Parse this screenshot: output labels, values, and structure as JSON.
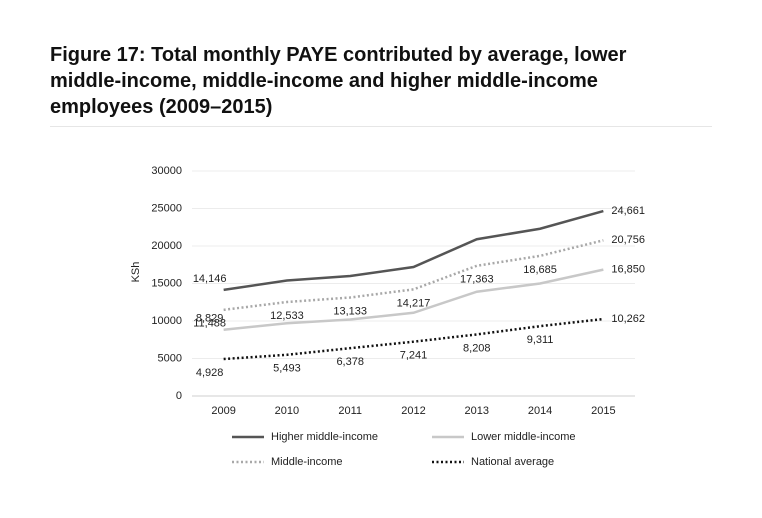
{
  "chart_data": {
    "type": "line",
    "title": "Figure 17: Total monthly PAYE contributed by average, lower middle-income, middle-income and higher middle-income employees (2009–2015)",
    "y_label": "KSh",
    "categories": [
      "2009",
      "2010",
      "2011",
      "2012",
      "2013",
      "2014",
      "2015"
    ],
    "ylim": [
      0,
      30000
    ],
    "yticks": [
      0,
      5000,
      10000,
      15000,
      20000,
      25000,
      30000
    ],
    "grid": true,
    "series": [
      {
        "name": "Higher middle-income",
        "color": "#555555",
        "dash": "solid",
        "values": [
          14146,
          15400,
          16000,
          17200,
          20900,
          22300,
          24661
        ],
        "value_labels": [
          "14,146",
          null,
          null,
          null,
          null,
          null,
          "24,661"
        ]
      },
      {
        "name": "Lower middle-income",
        "color": "#c8c8c8",
        "dash": "solid",
        "values": [
          8829,
          9700,
          10200,
          11100,
          13900,
          15000,
          16850
        ],
        "value_labels": [
          "8,829",
          null,
          null,
          null,
          null,
          null,
          "16,850"
        ]
      },
      {
        "name": "Middle-income",
        "color": "#a8a8a8",
        "dash": "dotted",
        "values": [
          11488,
          12533,
          13133,
          14217,
          17363,
          18685,
          20756
        ],
        "value_labels": [
          "11,488",
          "12,533",
          "13,133",
          "14,217",
          "17,363",
          "18,685",
          "20,756"
        ]
      },
      {
        "name": "National average",
        "color": "#111111",
        "dash": "dotted",
        "values": [
          4928,
          5493,
          6378,
          7241,
          8208,
          9311,
          10262
        ],
        "value_labels": [
          "4,928",
          "5,493",
          "6,378",
          "7,241",
          "8,208",
          "9,311",
          "10,262"
        ]
      }
    ]
  }
}
